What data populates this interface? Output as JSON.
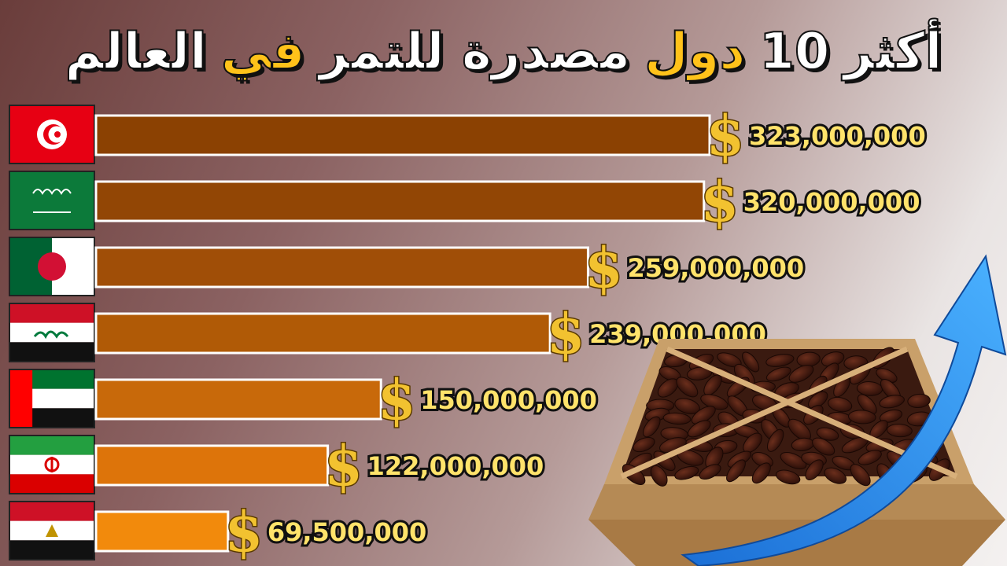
{
  "title": {
    "part1": "أكثر",
    "part2": "10",
    "part3": "دول",
    "part4": "مصدرة للتمر",
    "part5": "في",
    "part6": "العالم"
  },
  "chart_data": {
    "type": "bar",
    "orientation": "horizontal",
    "categories": [
      "Tunisia",
      "Saudi Arabia",
      "Algeria",
      "Iraq",
      "United Arab Emirates",
      "Iran",
      "Egypt"
    ],
    "values": [
      323000000,
      320000000,
      259000000,
      239000000,
      150000000,
      122000000,
      69500000
    ],
    "value_labels": [
      "323,000,000",
      "320,000,000",
      "259,000,000",
      "239,000,000",
      "150,000,000",
      "122,000,000",
      "69,500,000"
    ],
    "bar_colors": [
      "#8b4102",
      "#924605",
      "#a04e07",
      "#b05a06",
      "#c8690a",
      "#dd740a",
      "#f28a0c"
    ],
    "value_prefix_icon": "dollar-sign-icon",
    "category_icons": [
      "tunisia-flag-icon",
      "saudi-flag-icon",
      "algeria-flag-icon",
      "iraq-flag-icon",
      "uae-flag-icon",
      "iran-flag-icon",
      "egypt-flag-icon"
    ]
  },
  "decorations": {
    "photo": "box-of-dates",
    "arrow": "blue-rising-arrow-icon",
    "title_accent_color": "#ffc21a"
  }
}
